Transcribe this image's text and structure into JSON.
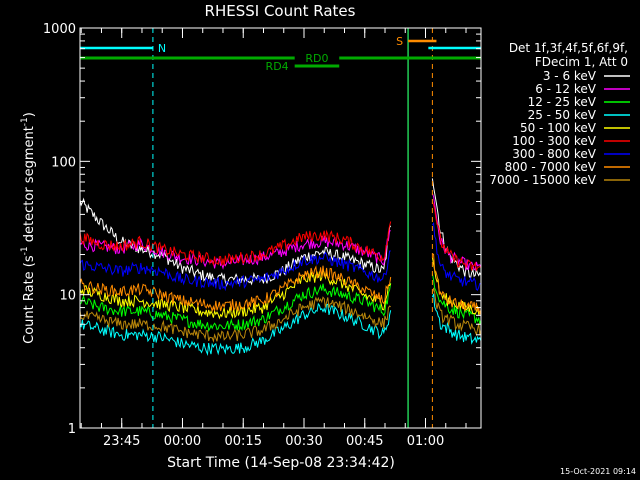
{
  "chart_data": {
    "type": "line",
    "title": "RHESSI Count Rates",
    "xlabel": "Start Time (14-Sep-08 23:34:42)",
    "ylabel_main": "Count Rate (s",
    "ylabel_sup1": "-1",
    "ylabel_mid": " detector segment",
    "ylabel_sup2": "-1",
    "ylabel_end": ")",
    "y_scale": "log",
    "ylim": [
      1,
      1000
    ],
    "xlim_minutes_after_start": [
      0,
      99
    ],
    "y_ticks": [
      {
        "value": 1,
        "label": "1"
      },
      {
        "value": 10,
        "label": "10"
      },
      {
        "value": 100,
        "label": "100"
      },
      {
        "value": 1000,
        "label": "1000"
      }
    ],
    "x_ticks": [
      {
        "minute": 10.3,
        "label": "23:45"
      },
      {
        "minute": 25.3,
        "label": "00:00"
      },
      {
        "minute": 40.3,
        "label": "00:15"
      },
      {
        "minute": 55.3,
        "label": "00:30"
      },
      {
        "minute": 70.3,
        "label": "00:45"
      },
      {
        "minute": 85.3,
        "label": "01:00"
      }
    ],
    "legend_header": [
      "Det 1f,3f,4f,5f,6f,9f,",
      "FDecim 1, Att 0"
    ],
    "x_key_minutes": [
      0,
      5,
      10,
      15,
      20,
      25,
      30,
      35,
      40,
      45,
      50,
      55,
      60,
      65,
      70,
      75,
      77,
      79,
      81,
      83,
      85,
      87,
      89,
      91,
      93,
      95,
      97,
      99
    ],
    "series": [
      {
        "name": "3 - 6 keV",
        "color": "#ffffff",
        "values": [
          50,
          35,
          25,
          22,
          20,
          16,
          14,
          13,
          13,
          13,
          15,
          19,
          21,
          19,
          17,
          15,
          40,
          null,
          null,
          null,
          null,
          80,
          30,
          20,
          17,
          15,
          14,
          14
        ]
      },
      {
        "name": "6 - 12 keV",
        "color": "#ff00ff",
        "values": [
          24,
          23,
          22,
          24,
          21,
          19,
          18,
          17,
          18,
          19,
          21,
          24,
          25,
          24,
          21,
          18,
          35,
          null,
          null,
          null,
          null,
          60,
          25,
          20,
          18,
          17,
          16,
          16
        ]
      },
      {
        "name": "12 - 25 keV",
        "color": "#00ff00",
        "values": [
          9,
          8,
          7.5,
          7.5,
          7,
          6.5,
          6,
          5.8,
          6,
          6.5,
          8,
          10,
          11,
          10,
          9,
          7.5,
          12,
          null,
          null,
          null,
          null,
          14,
          9,
          8,
          7.5,
          7,
          6.8,
          6.5
        ]
      },
      {
        "name": "25 - 50 keV",
        "color": "#00ffff",
        "values": [
          6,
          5.5,
          5,
          5,
          4.8,
          4.3,
          4,
          3.9,
          4,
          4.5,
          5.5,
          7,
          8,
          7,
          6,
          5,
          8,
          null,
          null,
          null,
          null,
          10,
          6,
          5.5,
          5,
          4.8,
          4.6,
          4.5
        ]
      },
      {
        "name": "50 - 100 keV",
        "color": "#ffff00",
        "values": [
          11,
          10,
          9,
          9,
          8.5,
          8,
          7.5,
          7.2,
          7.5,
          8,
          10,
          13,
          14,
          12,
          10,
          8.5,
          14,
          null,
          null,
          null,
          null,
          18,
          10,
          9,
          8.5,
          8,
          7.8,
          7.5
        ]
      },
      {
        "name": "100 - 300 keV",
        "color": "#ff0000",
        "values": [
          27,
          24,
          23,
          25,
          22,
          20,
          19,
          18,
          19,
          20,
          23,
          27,
          28,
          26,
          22,
          19,
          40,
          null,
          null,
          null,
          null,
          55,
          25,
          20,
          18,
          17,
          16,
          16
        ]
      },
      {
        "name": "300 - 800 keV",
        "color": "#0000ff",
        "values": [
          17,
          16,
          15,
          16,
          15,
          13,
          12.5,
          12,
          12.5,
          13,
          15,
          18,
          19,
          17,
          15,
          13,
          25,
          null,
          null,
          null,
          null,
          35,
          16,
          14,
          13,
          12.5,
          12,
          12
        ]
      },
      {
        "name": "800 - 7000 keV",
        "color": "#ff8c00",
        "values": [
          12,
          11,
          10.5,
          11,
          10,
          9,
          8.5,
          8.2,
          8.5,
          9,
          11,
          14,
          15,
          13,
          11,
          9,
          15,
          null,
          null,
          null,
          null,
          20,
          10,
          9,
          8.5,
          8.2,
          8,
          7.8
        ]
      },
      {
        "name": "7000 - 15000 keV",
        "color": "#b8860b",
        "values": [
          7,
          6.5,
          6,
          6,
          5.8,
          5.3,
          5,
          4.8,
          5,
          5.4,
          6.5,
          8,
          9,
          8,
          7,
          6,
          9,
          null,
          null,
          null,
          null,
          11,
          7,
          6.5,
          6,
          5.8,
          5.6,
          5.5
        ]
      }
    ],
    "annotations": {
      "night_label": "N",
      "saa_label": "S",
      "roll_labels": [
        "RD0",
        "RD4"
      ],
      "night_intervals_minutes": [
        [
          0,
          18
        ],
        [
          86,
          99
        ]
      ],
      "saa_interval_minutes": [
        81,
        88
      ],
      "rd0_intervals_minutes": [
        [
          0,
          53
        ],
        [
          64,
          99
        ]
      ],
      "rd4_interval_minutes": [
        53,
        64
      ],
      "vlines_cyan_dashed_minutes": [
        0,
        18,
        99
      ],
      "vline_green_solid_minute": 81,
      "vline_orange_dashed_minute": 87
    },
    "grid": false
  },
  "footer": {
    "timestamp": "15-Oct-2021 09:14"
  }
}
